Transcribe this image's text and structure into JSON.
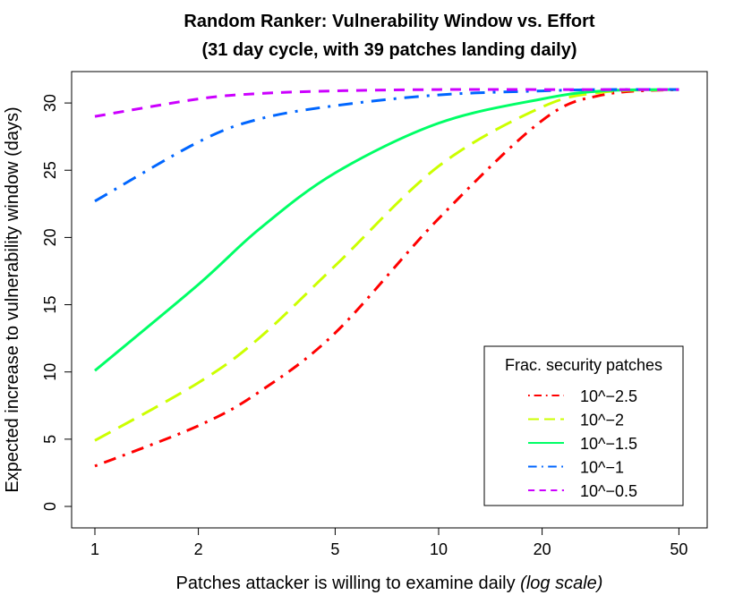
{
  "chart_data": {
    "type": "line",
    "title": "Random Ranker: Vulnerability Window vs. Effort",
    "subtitle": "(31 day cycle, with 39 patches landing daily)",
    "xlabel": "Patches attacker is willing to examine daily",
    "xlabel_suffix": "(log scale)",
    "ylabel": "Expected increase to vulnerability window (days)",
    "x_scale": "log",
    "xlim": [
      1,
      50
    ],
    "ylim": [
      0,
      31
    ],
    "x_ticks": [
      1,
      2,
      5,
      10,
      20,
      50
    ],
    "x_tick_labels": [
      "1",
      "2",
      "5",
      "10",
      "20",
      "50"
    ],
    "y_ticks": [
      0,
      5,
      10,
      15,
      20,
      25,
      30
    ],
    "y_tick_labels": [
      "0",
      "5",
      "10",
      "15",
      "20",
      "25",
      "30"
    ],
    "grid": false,
    "legend": {
      "title": "Frac. security patches",
      "placement": "bottom-right"
    },
    "x": [
      1,
      2,
      3,
      5,
      10,
      20,
      30,
      50
    ],
    "series": [
      {
        "name": "10^−2.5",
        "color": "#FF0000",
        "dash": "dotdash",
        "values": [
          3.0,
          6.0,
          8.5,
          12.9,
          21.4,
          28.7,
          30.6,
          31.0
        ]
      },
      {
        "name": "10^−2",
        "color": "#CCFF00",
        "dash": "dashed",
        "values": [
          4.9,
          9.2,
          12.5,
          17.9,
          25.3,
          29.7,
          30.8,
          31.0
        ]
      },
      {
        "name": "10^−1.5",
        "color": "#00FF66",
        "dash": "solid",
        "values": [
          10.1,
          16.5,
          20.6,
          24.8,
          28.5,
          30.3,
          30.9,
          31.0
        ]
      },
      {
        "name": "10^−1",
        "color": "#0066FF",
        "dash": "longdash-dot",
        "values": [
          22.7,
          27.1,
          28.8,
          29.8,
          30.6,
          30.9,
          31.0,
          31.0
        ]
      },
      {
        "name": "10^−0.5",
        "color": "#CC00FF",
        "dash": "dashed-short",
        "values": [
          29.0,
          30.3,
          30.7,
          30.9,
          31.0,
          31.0,
          31.0,
          31.0
        ]
      }
    ]
  }
}
